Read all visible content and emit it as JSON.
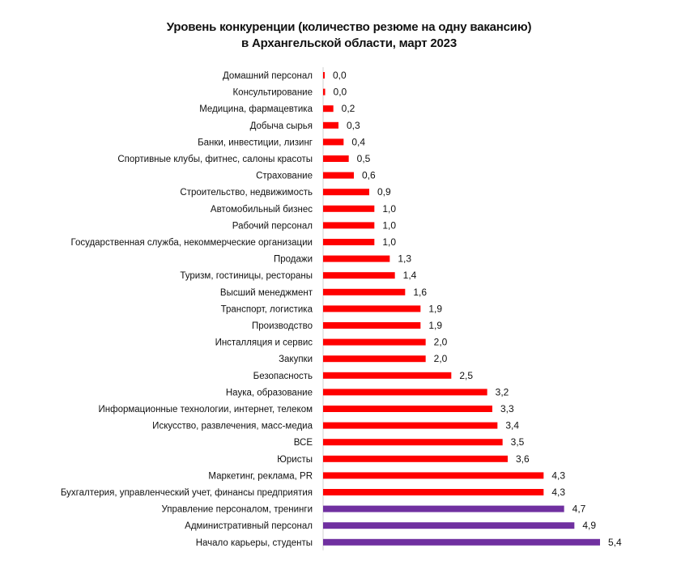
{
  "chart_data": {
    "type": "bar",
    "orientation": "horizontal",
    "title": "Уровень конкуренции (количество резюме на одну вакансию)",
    "subtitle": "в Архангельской области, март 2023",
    "categories": [
      "Домашний персонал",
      "Консультирование",
      "Медицина, фармацевтика",
      "Добыча сырья",
      "Банки, инвестиции, лизинг",
      "Спортивные клубы, фитнес, салоны красоты",
      "Страхование",
      "Строительство, недвижимость",
      "Автомобильный бизнес",
      "Рабочий персонал",
      "Государственная служба, некоммерческие организации",
      "Продажи",
      "Туризм, гостиницы, рестораны",
      "Высший менеджмент",
      "Транспорт, логистика",
      "Производство",
      "Инсталляция и сервис",
      "Закупки",
      "Безопасность",
      "Наука, образование",
      "Информационные технологии, интернет, телеком",
      "Искусство, развлечения, масс-медиа",
      "ВСЕ",
      "Юристы",
      "Маркетинг, реклама, PR",
      "Бухгалтерия, управленческий учет, финансы предприятия",
      "Управление персоналом, тренинги",
      "Административный персонал",
      "Начало карьеры, студенты"
    ],
    "values": [
      0.02,
      0.04,
      0.2,
      0.3,
      0.4,
      0.5,
      0.6,
      0.9,
      1.0,
      1.0,
      1.0,
      1.3,
      1.4,
      1.6,
      1.9,
      1.9,
      2.0,
      2.0,
      2.5,
      3.2,
      3.3,
      3.4,
      3.5,
      3.6,
      4.3,
      4.3,
      4.7,
      4.9,
      5.4
    ],
    "value_labels": [
      "0,0",
      "0,0",
      "0,2",
      "0,3",
      "0,4",
      "0,5",
      "0,6",
      "0,9",
      "1,0",
      "1,0",
      "1,0",
      "1,3",
      "1,4",
      "1,6",
      "1,9",
      "1,9",
      "2,0",
      "2,0",
      "2,5",
      "3,2",
      "3,3",
      "3,4",
      "3,5",
      "3,6",
      "4,3",
      "4,3",
      "4,7",
      "4,9",
      "5,4"
    ],
    "bar_colors": [
      "#ff0000",
      "#ff0000",
      "#ff0000",
      "#ff0000",
      "#ff0000",
      "#ff0000",
      "#ff0000",
      "#ff0000",
      "#ff0000",
      "#ff0000",
      "#ff0000",
      "#ff0000",
      "#ff0000",
      "#ff0000",
      "#ff0000",
      "#ff0000",
      "#ff0000",
      "#ff0000",
      "#ff0000",
      "#ff0000",
      "#ff0000",
      "#ff0000",
      "#ff0000",
      "#ff0000",
      "#ff0000",
      "#ff0000",
      "#7030a0",
      "#7030a0",
      "#7030a0"
    ],
    "xlim": [
      0,
      5.4
    ],
    "grid": false,
    "legend": "none",
    "colors": {
      "primary": "#ff0000",
      "highlight": "#7030a0",
      "axis": "#d0d0d0"
    }
  }
}
